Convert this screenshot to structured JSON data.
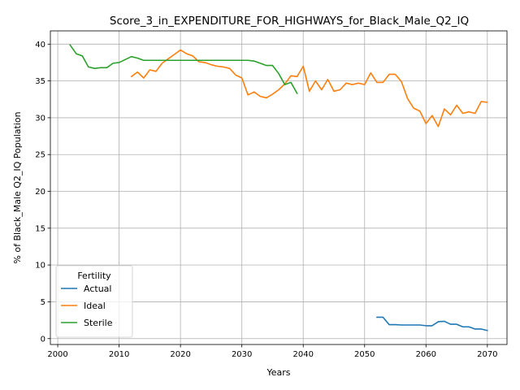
{
  "chart_data": {
    "type": "line",
    "title": "Score_3_in_EXPENDITURE_FOR_HIGHWAYS_for_Black_Male_Q2_IQ",
    "xlabel": "Years",
    "ylabel": "% of Black_Male Q2_IQ Population",
    "xlim": [
      1998.8,
      2073.2
    ],
    "ylim": [
      -0.8,
      41.8
    ],
    "xticks": [
      2000,
      2010,
      2020,
      2030,
      2040,
      2050,
      2060,
      2070
    ],
    "yticks": [
      0,
      5,
      10,
      15,
      20,
      25,
      30,
      35,
      40
    ],
    "grid": true,
    "legend": {
      "title": "Fertility",
      "placement": "lower-left"
    },
    "series": [
      {
        "name": "Actual",
        "color": "#1f77b4",
        "x": [
          2052,
          2053,
          2054,
          2055,
          2056,
          2057,
          2058,
          2059,
          2060,
          2061,
          2062,
          2063,
          2064,
          2065,
          2066,
          2067,
          2068,
          2069,
          2070
        ],
        "y": [
          2.9,
          2.9,
          1.9,
          1.9,
          1.85,
          1.85,
          1.85,
          1.85,
          1.75,
          1.75,
          2.3,
          2.35,
          1.95,
          1.95,
          1.6,
          1.6,
          1.3,
          1.3,
          1.1
        ]
      },
      {
        "name": "Ideal",
        "color": "#ff7f0e",
        "x": [
          2012,
          2013,
          2014,
          2015,
          2016,
          2017,
          2018,
          2019,
          2020,
          2021,
          2022,
          2023,
          2024,
          2025,
          2026,
          2027,
          2028,
          2029,
          2030,
          2031,
          2032,
          2033,
          2034,
          2035,
          2036,
          2037,
          2038,
          2039,
          2040,
          2041,
          2042,
          2043,
          2044,
          2045,
          2046,
          2047,
          2048,
          2049,
          2050,
          2051,
          2052,
          2053,
          2054,
          2055,
          2056,
          2057,
          2058,
          2059,
          2060,
          2061,
          2062,
          2063,
          2064,
          2065,
          2066,
          2067,
          2068,
          2069,
          2070
        ],
        "y": [
          35.6,
          36.2,
          35.4,
          36.5,
          36.3,
          37.4,
          38.0,
          38.6,
          39.2,
          38.7,
          38.4,
          37.6,
          37.5,
          37.2,
          37.0,
          36.9,
          36.7,
          35.8,
          35.4,
          33.1,
          33.5,
          32.9,
          32.7,
          33.2,
          33.8,
          34.6,
          35.7,
          35.6,
          37.0,
          33.6,
          35.0,
          33.8,
          35.2,
          33.6,
          33.8,
          34.7,
          34.5,
          34.7,
          34.5,
          36.1,
          34.8,
          34.8,
          35.9,
          35.9,
          34.9,
          32.6,
          31.3,
          30.9,
          29.2,
          30.3,
          28.8,
          31.2,
          30.4,
          31.7,
          30.6,
          30.8,
          30.6,
          32.2,
          32.1
        ]
      },
      {
        "name": "Sterile",
        "color": "#2ca02c",
        "x": [
          2002,
          2003,
          2004,
          2005,
          2006,
          2007,
          2008,
          2009,
          2010,
          2011,
          2012,
          2013,
          2014,
          2015,
          2016,
          2017,
          2018,
          2019,
          2020,
          2021,
          2022,
          2023,
          2024,
          2025,
          2026,
          2027,
          2028,
          2029,
          2030,
          2031,
          2032,
          2033,
          2034,
          2035,
          2036,
          2037,
          2038,
          2039
        ],
        "y": [
          39.9,
          38.7,
          38.4,
          36.9,
          36.7,
          36.8,
          36.8,
          37.4,
          37.5,
          37.9,
          38.3,
          38.1,
          37.8,
          37.8,
          37.8,
          37.8,
          37.8,
          37.8,
          37.8,
          37.8,
          37.8,
          37.8,
          37.8,
          37.8,
          37.8,
          37.8,
          37.8,
          37.8,
          37.8,
          37.8,
          37.7,
          37.4,
          37.1,
          37.1,
          36.0,
          34.5,
          34.8,
          33.3
        ]
      }
    ]
  }
}
